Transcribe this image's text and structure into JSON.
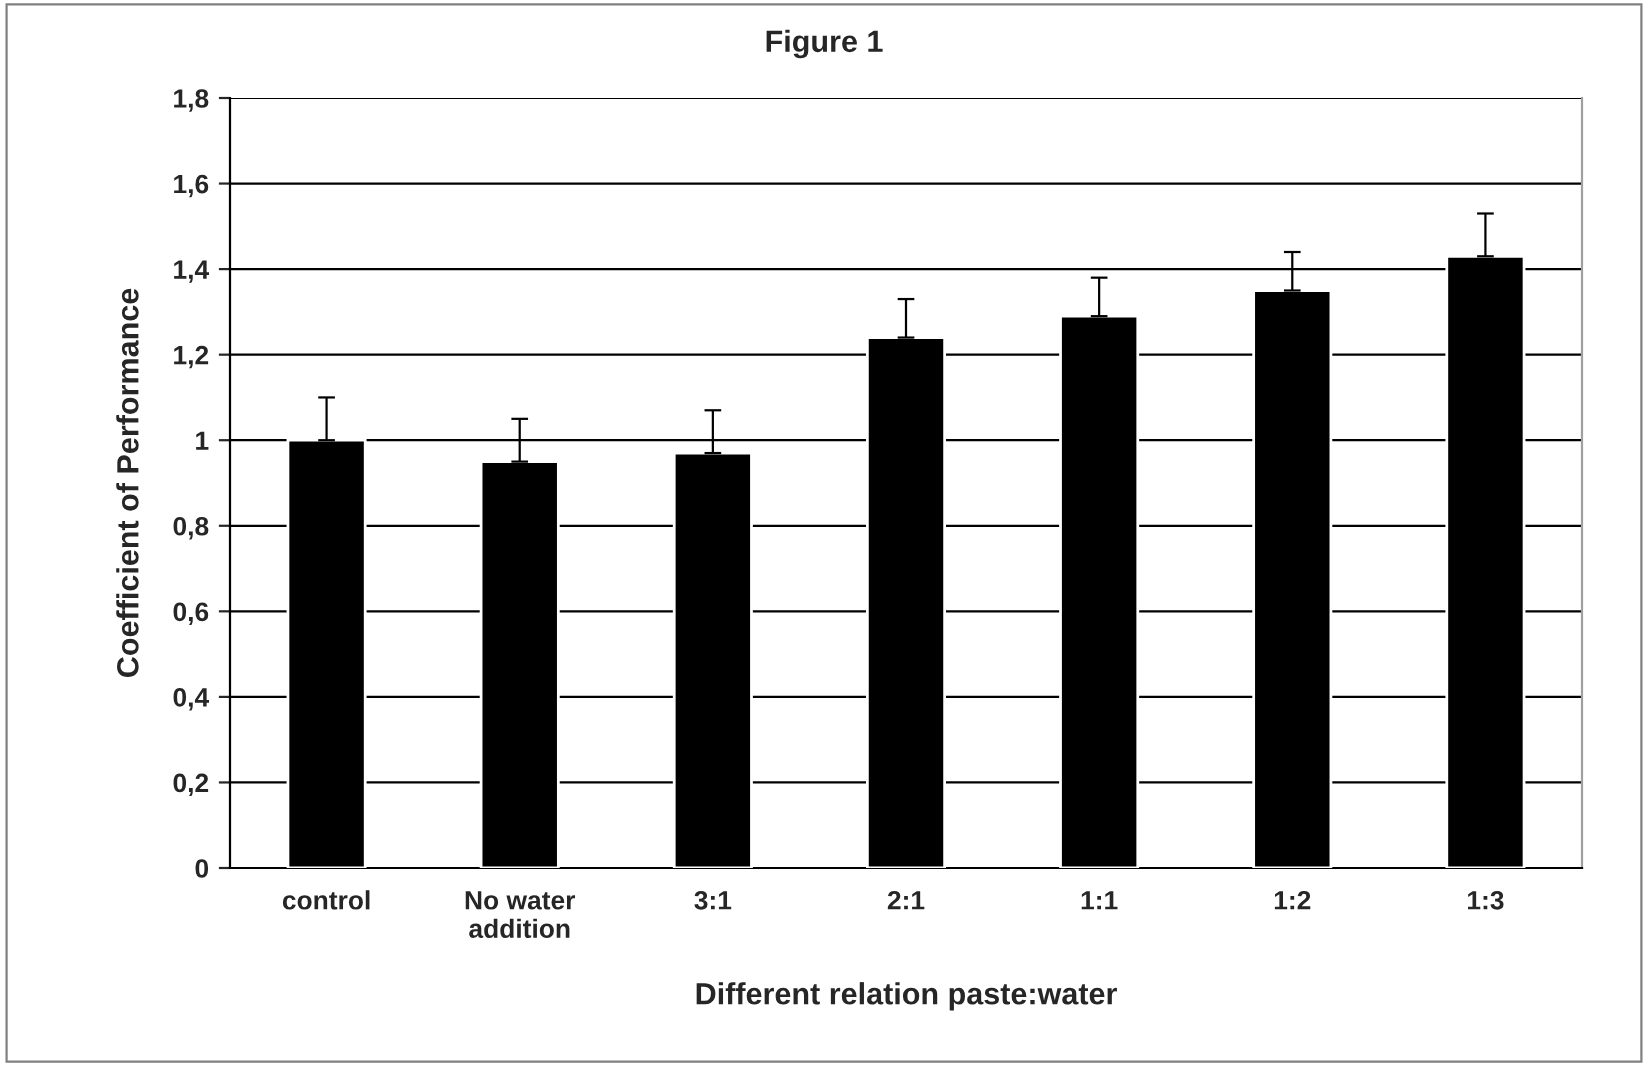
{
  "chart_data": {
    "type": "bar",
    "title": "Figure 1",
    "xlabel": "Different relation paste:water",
    "ylabel": "Coefficient of Performance",
    "categories": [
      "control",
      "No water\naddition",
      "3:1",
      "2:1",
      "1:1",
      "1:2",
      "1:3"
    ],
    "values": [
      1.0,
      0.95,
      0.97,
      1.24,
      1.29,
      1.35,
      1.43
    ],
    "errors": [
      [
        1.0,
        1.1
      ],
      [
        0.95,
        1.05
      ],
      [
        0.97,
        1.07
      ],
      [
        1.24,
        1.33
      ],
      [
        1.29,
        1.38
      ],
      [
        1.35,
        1.44
      ],
      [
        1.43,
        1.53
      ]
    ],
    "color": "#000000",
    "ylim": [
      0,
      1.8
    ],
    "yticks": [
      0,
      {
        "value": 0.2,
        "label": "0,2"
      },
      {
        "value": 0.4,
        "label": "0,4"
      },
      {
        "value": 0.6,
        "label": "0,6"
      },
      {
        "value": 0.8,
        "label": "0,8"
      },
      1,
      {
        "value": 1.2,
        "label": "1,2"
      },
      {
        "value": 1.4,
        "label": "1,4"
      },
      {
        "value": 1.6,
        "label": "1,6"
      },
      {
        "value": 1.8,
        "label": "1,8"
      }
    ],
    "grid": "y"
  }
}
